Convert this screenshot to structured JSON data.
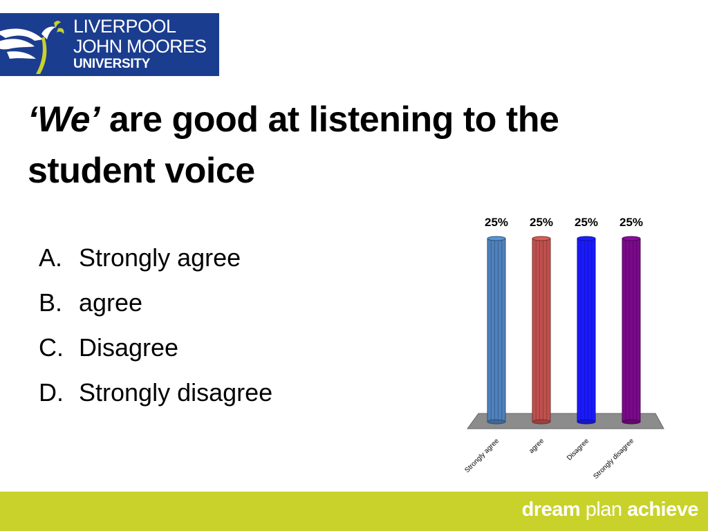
{
  "logo": {
    "line1": "LIVERPOOL",
    "line2": "JOHN MOORES",
    "line3": "UNIVERSITY",
    "icon": "liver-bird-icon",
    "bg_color": "#1b3d8f"
  },
  "title": {
    "emphasis": "‘We’",
    "rest": " are good at listening to the student voice"
  },
  "options": [
    {
      "letter": "A.",
      "text": "Strongly agree"
    },
    {
      "letter": "B.",
      "text": "agree"
    },
    {
      "letter": "C.",
      "text": "Disagree"
    },
    {
      "letter": "D.",
      "text": "Strongly disagree"
    }
  ],
  "chart_data": {
    "type": "bar",
    "categories": [
      "Strongly agree",
      "agree",
      "Disagree",
      "Strongly disagree"
    ],
    "values": [
      25,
      25,
      25,
      25
    ],
    "data_labels": [
      "25%",
      "25%",
      "25%",
      "25%"
    ],
    "colors": [
      "#4f81bd",
      "#c0504d",
      "#1a1aff",
      "#7a0a8a"
    ],
    "ylim": [
      0,
      25
    ],
    "grid": false
  },
  "footer": {
    "word1": "dream",
    "word2": "plan",
    "word3": "achieve",
    "bg_color": "#c8d22a"
  }
}
